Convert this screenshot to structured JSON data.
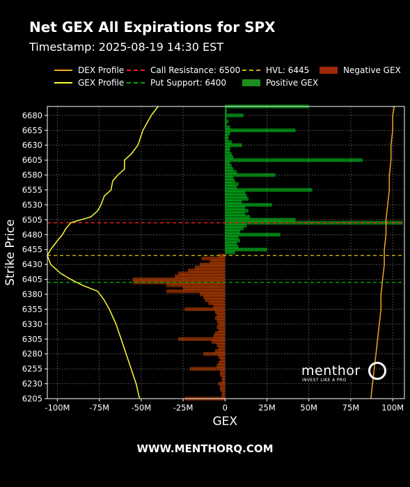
{
  "header": {
    "title": "Net GEX All Expirations for SPX",
    "timestamp": "Timestamp: 2025-08-19 14:30 EST"
  },
  "footer": {
    "url": "WWW.MENTHORQ.COM"
  },
  "watermark": {
    "brand": "menthor",
    "tagline": "INVEST LIKE A PRO"
  },
  "legend": [
    {
      "label": "DEX Profile",
      "style": "line",
      "color": "#f5a623"
    },
    {
      "label": "Call Resistance: 6500",
      "style": "dash",
      "color": "#ff1a1a"
    },
    {
      "label": "HVL: 6445",
      "style": "dash",
      "color": "#c8b400"
    },
    {
      "label": "Negative GEX",
      "style": "box",
      "color": "#a0280a"
    },
    {
      "label": "GEX Profile",
      "style": "line",
      "color": "#ffff33"
    },
    {
      "label": "Put Support: 6400",
      "style": "dash",
      "color": "#00b000"
    },
    {
      "label": "Positive GEX",
      "style": "box",
      "color": "#1f8c1f"
    }
  ],
  "chart_data": {
    "type": "bar",
    "orientation": "horizontal",
    "title": "Net GEX All Expirations for SPX",
    "xlabel": "GEX",
    "ylabel": "Strike Price",
    "xlim": [
      -106,
      107
    ],
    "ylim": [
      6205,
      6695
    ],
    "x_ticks": [
      -100,
      -75,
      -50,
      -25,
      0,
      25,
      50,
      75,
      100
    ],
    "x_tick_labels": [
      "-100M",
      "-75M",
      "-50M",
      "-25M",
      "0",
      "25M",
      "50M",
      "75M",
      "100M"
    ],
    "y_ticks": [
      6205,
      6230,
      6255,
      6280,
      6305,
      6330,
      6355,
      6380,
      6405,
      6430,
      6455,
      6480,
      6505,
      6530,
      6555,
      6580,
      6605,
      6630,
      6655,
      6680
    ],
    "grid": true,
    "levels": [
      {
        "name": "Call Resistance",
        "value": 6500,
        "color": "#ff1a1a"
      },
      {
        "name": "HVL",
        "value": 6445,
        "color": "#c8b400"
      },
      {
        "name": "Put Support",
        "value": 6400,
        "color": "#00b000"
      }
    ],
    "gex_bars": [
      {
        "strike": 6695,
        "value": 50
      },
      {
        "strike": 6690,
        "value": 1
      },
      {
        "strike": 6685,
        "value": 1
      },
      {
        "strike": 6680,
        "value": 11
      },
      {
        "strike": 6675,
        "value": 1
      },
      {
        "strike": 6670,
        "value": 2
      },
      {
        "strike": 6665,
        "value": 1
      },
      {
        "strike": 6660,
        "value": 3
      },
      {
        "strike": 6655,
        "value": 42
      },
      {
        "strike": 6650,
        "value": 3
      },
      {
        "strike": 6645,
        "value": 2
      },
      {
        "strike": 6640,
        "value": 2
      },
      {
        "strike": 6635,
        "value": 4
      },
      {
        "strike": 6630,
        "value": 10
      },
      {
        "strike": 6625,
        "value": 3
      },
      {
        "strike": 6620,
        "value": 3
      },
      {
        "strike": 6615,
        "value": 4
      },
      {
        "strike": 6610,
        "value": 5
      },
      {
        "strike": 6605,
        "value": 82
      },
      {
        "strike": 6600,
        "value": 3
      },
      {
        "strike": 6595,
        "value": 4
      },
      {
        "strike": 6590,
        "value": 5
      },
      {
        "strike": 6585,
        "value": 7
      },
      {
        "strike": 6580,
        "value": 30
      },
      {
        "strike": 6575,
        "value": 5
      },
      {
        "strike": 6570,
        "value": 6
      },
      {
        "strike": 6565,
        "value": 8
      },
      {
        "strike": 6560,
        "value": 7
      },
      {
        "strike": 6555,
        "value": 52
      },
      {
        "strike": 6550,
        "value": 12
      },
      {
        "strike": 6545,
        "value": 13
      },
      {
        "strike": 6540,
        "value": 14
      },
      {
        "strike": 6535,
        "value": 10
      },
      {
        "strike": 6530,
        "value": 28
      },
      {
        "strike": 6525,
        "value": 12
      },
      {
        "strike": 6520,
        "value": 14
      },
      {
        "strike": 6515,
        "value": 12
      },
      {
        "strike": 6510,
        "value": 15
      },
      {
        "strike": 6505,
        "value": 42
      },
      {
        "strike": 6500,
        "value": 106
      },
      {
        "strike": 6495,
        "value": 13
      },
      {
        "strike": 6490,
        "value": 11
      },
      {
        "strike": 6485,
        "value": 9
      },
      {
        "strike": 6480,
        "value": 33
      },
      {
        "strike": 6475,
        "value": 8
      },
      {
        "strike": 6470,
        "value": 9
      },
      {
        "strike": 6465,
        "value": 7
      },
      {
        "strike": 6460,
        "value": 8
      },
      {
        "strike": 6455,
        "value": 25
      },
      {
        "strike": 6450,
        "value": 6
      },
      {
        "strike": 6445,
        "value": -4
      },
      {
        "strike": 6440,
        "value": -14
      },
      {
        "strike": 6435,
        "value": -9
      },
      {
        "strike": 6430,
        "value": -15
      },
      {
        "strike": 6425,
        "value": -18
      },
      {
        "strike": 6420,
        "value": -22
      },
      {
        "strike": 6415,
        "value": -28
      },
      {
        "strike": 6410,
        "value": -30
      },
      {
        "strike": 6405,
        "value": -55
      },
      {
        "strike": 6400,
        "value": -55
      },
      {
        "strike": 6395,
        "value": -35
      },
      {
        "strike": 6390,
        "value": -25
      },
      {
        "strike": 6385,
        "value": -35
      },
      {
        "strike": 6380,
        "value": -15
      },
      {
        "strike": 6375,
        "value": -13
      },
      {
        "strike": 6370,
        "value": -12
      },
      {
        "strike": 6365,
        "value": -10
      },
      {
        "strike": 6360,
        "value": -7
      },
      {
        "strike": 6355,
        "value": -24
      },
      {
        "strike": 6350,
        "value": -6
      },
      {
        "strike": 6345,
        "value": -5
      },
      {
        "strike": 6340,
        "value": -6
      },
      {
        "strike": 6335,
        "value": -5
      },
      {
        "strike": 6330,
        "value": -4
      },
      {
        "strike": 6325,
        "value": -5
      },
      {
        "strike": 6320,
        "value": -4
      },
      {
        "strike": 6315,
        "value": -6
      },
      {
        "strike": 6310,
        "value": -7
      },
      {
        "strike": 6305,
        "value": -28
      },
      {
        "strike": 6300,
        "value": -8
      },
      {
        "strike": 6295,
        "value": -5
      },
      {
        "strike": 6290,
        "value": -4
      },
      {
        "strike": 6285,
        "value": -6
      },
      {
        "strike": 6280,
        "value": -13
      },
      {
        "strike": 6275,
        "value": -4
      },
      {
        "strike": 6270,
        "value": -3
      },
      {
        "strike": 6265,
        "value": -4
      },
      {
        "strike": 6260,
        "value": -5
      },
      {
        "strike": 6255,
        "value": -21
      },
      {
        "strike": 6250,
        "value": -3
      },
      {
        "strike": 6245,
        "value": -3
      },
      {
        "strike": 6240,
        "value": -2
      },
      {
        "strike": 6235,
        "value": -2
      },
      {
        "strike": 6230,
        "value": -4
      },
      {
        "strike": 6225,
        "value": -3
      },
      {
        "strike": 6220,
        "value": -3
      },
      {
        "strike": 6215,
        "value": -2
      },
      {
        "strike": 6210,
        "value": -2
      },
      {
        "strike": 6205,
        "value": -24
      }
    ],
    "series": [
      {
        "name": "GEX Profile",
        "color": "#ffff33",
        "points": [
          {
            "strike": 6695,
            "x": -40
          },
          {
            "strike": 6680,
            "x": -44
          },
          {
            "strike": 6655,
            "x": -49
          },
          {
            "strike": 6630,
            "x": -52
          },
          {
            "strike": 6615,
            "x": -56
          },
          {
            "strike": 6605,
            "x": -60
          },
          {
            "strike": 6595,
            "x": -60
          },
          {
            "strike": 6590,
            "x": -60
          },
          {
            "strike": 6580,
            "x": -64
          },
          {
            "strike": 6570,
            "x": -67
          },
          {
            "strike": 6555,
            "x": -68
          },
          {
            "strike": 6545,
            "x": -72
          },
          {
            "strike": 6530,
            "x": -74
          },
          {
            "strike": 6520,
            "x": -76
          },
          {
            "strike": 6510,
            "x": -80
          },
          {
            "strike": 6500,
            "x": -92
          },
          {
            "strike": 6490,
            "x": -95
          },
          {
            "strike": 6480,
            "x": -97
          },
          {
            "strike": 6470,
            "x": -100
          },
          {
            "strike": 6455,
            "x": -104
          },
          {
            "strike": 6445,
            "x": -106
          },
          {
            "strike": 6430,
            "x": -104
          },
          {
            "strike": 6415,
            "x": -98
          },
          {
            "strike": 6405,
            "x": -92
          },
          {
            "strike": 6395,
            "x": -85
          },
          {
            "strike": 6385,
            "x": -76
          },
          {
            "strike": 6370,
            "x": -72
          },
          {
            "strike": 6355,
            "x": -69
          },
          {
            "strike": 6330,
            "x": -65
          },
          {
            "strike": 6305,
            "x": -62
          },
          {
            "strike": 6280,
            "x": -59
          },
          {
            "strike": 6255,
            "x": -56
          },
          {
            "strike": 6230,
            "x": -53
          },
          {
            "strike": 6205,
            "x": -51
          }
        ]
      },
      {
        "name": "DEX Profile",
        "color": "#f5a623",
        "points": [
          {
            "strike": 6695,
            "x": 101
          },
          {
            "strike": 6680,
            "x": 100
          },
          {
            "strike": 6655,
            "x": 100
          },
          {
            "strike": 6630,
            "x": 99
          },
          {
            "strike": 6605,
            "x": 99
          },
          {
            "strike": 6580,
            "x": 98
          },
          {
            "strike": 6555,
            "x": 98
          },
          {
            "strike": 6530,
            "x": 97
          },
          {
            "strike": 6505,
            "x": 96
          },
          {
            "strike": 6480,
            "x": 96
          },
          {
            "strike": 6455,
            "x": 95
          },
          {
            "strike": 6430,
            "x": 95
          },
          {
            "strike": 6405,
            "x": 94
          },
          {
            "strike": 6380,
            "x": 93
          },
          {
            "strike": 6355,
            "x": 93
          },
          {
            "strike": 6330,
            "x": 92
          },
          {
            "strike": 6305,
            "x": 91
          },
          {
            "strike": 6280,
            "x": 90
          },
          {
            "strike": 6255,
            "x": 89
          },
          {
            "strike": 6230,
            "x": 88
          },
          {
            "strike": 6205,
            "x": 87
          }
        ]
      }
    ]
  }
}
